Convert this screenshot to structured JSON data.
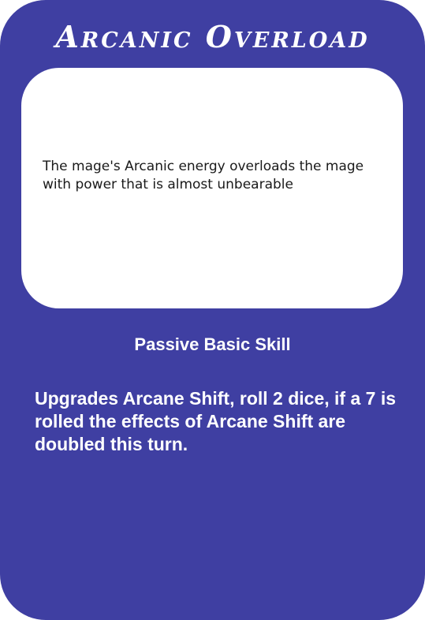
{
  "card": {
    "title": "Arcanic Overload",
    "flavor_text": "The mage's Arcanic energy overloads the mage with power that is almost unbearable",
    "skill_type": "Passive Basic Skill",
    "effect": "Upgrades Arcane Shift, roll 2 dice, if a 7 is rolled the effects of Arcane Shift are doubled this turn."
  },
  "colors": {
    "card_background": "#3f3fa2",
    "flavor_box": "#ffffff",
    "text_light": "#ffffff",
    "text_dark": "#1a1a1a"
  }
}
